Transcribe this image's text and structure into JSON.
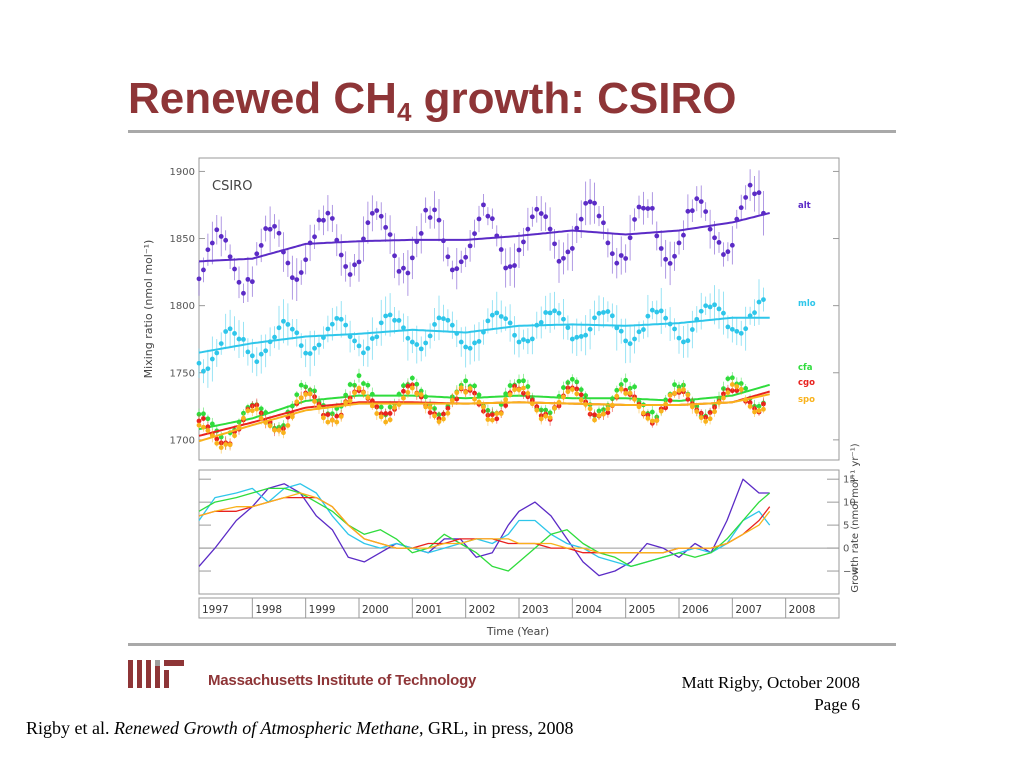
{
  "slide": {
    "title_main": "Renewed CH",
    "title_sub": "4",
    "title_rest": " growth: CSIRO",
    "institution": "Massachusetts Institute of Technology",
    "author": "Matt Rigby, October 2008",
    "page": "Page 6",
    "citation_pre": "Rigby et al. ",
    "citation_title": "Renewed Growth of Atmospheric Methane",
    "citation_post": ", GRL, in press, 2008"
  },
  "colors": {
    "title": "#8e3537",
    "alt": "#5b2bc6",
    "mlo": "#2ec6ea",
    "cfa": "#2fdc3c",
    "cgo": "#e8221f",
    "spo": "#f9b21c"
  },
  "chart_data": [
    {
      "type": "scatter",
      "annotation": "CSIRO",
      "ylabel": "Mixing ratio (nmol mol⁻¹)",
      "ylim": [
        1685,
        1910
      ],
      "xlim": [
        1997,
        2009.0
      ],
      "yticks": [
        1700,
        1750,
        1800,
        1850,
        1900
      ],
      "series": [
        {
          "name": "alt",
          "color": "#5b2bc6",
          "trend": [
            [
              1997.0,
              1833
            ],
            [
              1998.0,
              1835
            ],
            [
              1999.0,
              1846
            ],
            [
              2000.0,
              1848
            ],
            [
              2001.0,
              1849
            ],
            [
              2002.0,
              1849
            ],
            [
              2003.0,
              1852
            ],
            [
              2004.0,
              1856
            ],
            [
              2005.0,
              1853
            ],
            [
              2006.0,
              1856
            ],
            [
              2007.0,
              1862
            ],
            [
              2007.7,
              1869
            ]
          ],
          "mean": [
            1997.0,
            1838
          ],
          "amp": 22
        },
        {
          "name": "mlo",
          "color": "#2ec6ea",
          "trend": [
            [
              1997.0,
              1765
            ],
            [
              1998.0,
              1772
            ],
            [
              1999.0,
              1777
            ],
            [
              2000.0,
              1779
            ],
            [
              2001.0,
              1782
            ],
            [
              2002.0,
              1780
            ],
            [
              2003.0,
              1785
            ],
            [
              2004.0,
              1786
            ],
            [
              2005.0,
              1785
            ],
            [
              2006.0,
              1787
            ],
            [
              2007.0,
              1791
            ],
            [
              2007.7,
              1791
            ]
          ],
          "mean": [
            1997.0,
            1770
          ],
          "amp": 12
        },
        {
          "name": "cfa",
          "color": "#2fdc3c",
          "trend": [
            [
              1997.0,
              1708
            ],
            [
              1998.0,
              1716
            ],
            [
              1999.0,
              1729
            ],
            [
              2000.0,
              1733
            ],
            [
              2001.0,
              1733
            ],
            [
              2002.0,
              1731
            ],
            [
              2003.0,
              1733
            ],
            [
              2004.0,
              1731
            ],
            [
              2005.0,
              1731
            ],
            [
              2006.0,
              1729
            ],
            [
              2007.0,
              1733
            ],
            [
              2007.7,
              1741
            ]
          ],
          "mean": [
            1997.0,
            1712
          ],
          "amp": 12
        },
        {
          "name": "cgo",
          "color": "#e8221f",
          "trend": [
            [
              1997.0,
              1703
            ],
            [
              1998.0,
              1713
            ],
            [
              1999.0,
              1724
            ],
            [
              2000.0,
              1728
            ],
            [
              2001.0,
              1728
            ],
            [
              2002.0,
              1727
            ],
            [
              2003.0,
              1728
            ],
            [
              2004.0,
              1727
            ],
            [
              2005.0,
              1726
            ],
            [
              2006.0,
              1726
            ],
            [
              2007.0,
              1728
            ],
            [
              2007.7,
              1736
            ]
          ],
          "mean": [
            1997.0,
            1707
          ],
          "amp": 11
        },
        {
          "name": "spo",
          "color": "#f9b21c",
          "trend": [
            [
              1997.0,
              1699
            ],
            [
              1998.0,
              1711
            ],
            [
              1999.0,
              1722
            ],
            [
              2000.0,
              1727
            ],
            [
              2001.0,
              1727
            ],
            [
              2002.0,
              1727
            ],
            [
              2003.0,
              1728
            ],
            [
              2004.0,
              1727
            ],
            [
              2005.0,
              1726
            ],
            [
              2006.0,
              1726
            ],
            [
              2007.0,
              1728
            ],
            [
              2007.7,
              1734
            ]
          ],
          "mean": [
            1997.0,
            1703
          ],
          "amp": 11
        }
      ]
    },
    {
      "type": "line",
      "xlabel": "Time (Year)",
      "ylabel": "Growth rate (nmol mol⁻¹ yr⁻¹)",
      "ylim": [
        -10,
        17
      ],
      "xlim": [
        1997,
        2009.0
      ],
      "yticks": [
        -5,
        0,
        5,
        10,
        15
      ],
      "ytick_labels": [
        "−5",
        "0",
        "5",
        "10",
        "15"
      ],
      "xticks": [
        1997,
        1998,
        1999,
        2000,
        2001,
        2002,
        2003,
        2004,
        2005,
        2006,
        2007,
        2008
      ],
      "xtick_labels": [
        "1997",
        "1998",
        "1999",
        "2000",
        "2001",
        "2002",
        "2003",
        "2004",
        "2005",
        "2006",
        "2007",
        "2008"
      ],
      "series": [
        {
          "name": "alt",
          "color": "#5b2bc6",
          "x": [
            1997.0,
            1997.3,
            1997.7,
            1998.0,
            1998.3,
            1998.6,
            1998.9,
            1999.2,
            1999.5,
            1999.8,
            2000.1,
            2000.4,
            2000.7,
            2001.0,
            2001.3,
            2001.6,
            2001.9,
            2002.2,
            2002.5,
            2002.8,
            2003.0,
            2003.3,
            2003.6,
            2003.9,
            2004.2,
            2004.5,
            2004.8,
            2005.1,
            2005.4,
            2005.7,
            2006.0,
            2006.3,
            2006.6,
            2006.9,
            2007.2,
            2007.5,
            2007.7
          ],
          "y": [
            -4,
            0,
            6,
            9,
            13,
            14,
            12,
            7,
            4,
            -2,
            -3,
            -1,
            1,
            0,
            -1,
            2,
            2,
            -2,
            -1,
            5,
            8,
            10,
            7,
            2,
            -3,
            -6,
            -5,
            -3,
            1,
            0,
            -2,
            1,
            -1,
            6,
            15,
            12,
            12
          ]
        },
        {
          "name": "mlo",
          "color": "#2ec6ea",
          "x": [
            1997.0,
            1997.3,
            1997.7,
            1998.0,
            1998.3,
            1998.6,
            1998.9,
            1999.2,
            1999.5,
            1999.8,
            2000.1,
            2000.4,
            2000.7,
            2001.0,
            2001.3,
            2001.6,
            2001.9,
            2002.2,
            2002.5,
            2002.8,
            2003.0,
            2003.3,
            2003.6,
            2003.9,
            2004.2,
            2004.5,
            2004.8,
            2005.1,
            2005.4,
            2005.7,
            2006.0,
            2006.3,
            2006.6,
            2006.9,
            2007.2,
            2007.5,
            2007.7
          ],
          "y": [
            6,
            11,
            12,
            13,
            10,
            13,
            14,
            12,
            7,
            3,
            1,
            0,
            1,
            0,
            -1,
            0,
            1,
            2,
            1,
            3,
            6,
            6,
            3,
            1,
            0,
            -2,
            -3,
            -4,
            -3,
            -2,
            -1,
            0,
            -1,
            1,
            6,
            8,
            5
          ]
        },
        {
          "name": "cfa",
          "color": "#2fdc3c",
          "x": [
            1997.0,
            1997.3,
            1997.7,
            1998.0,
            1998.3,
            1998.6,
            1998.9,
            1999.2,
            1999.5,
            1999.8,
            2000.1,
            2000.4,
            2000.7,
            2001.0,
            2001.3,
            2001.6,
            2001.9,
            2002.2,
            2002.5,
            2002.8,
            2003.0,
            2003.3,
            2003.6,
            2003.9,
            2004.2,
            2004.5,
            2004.8,
            2005.1,
            2005.4,
            2005.7,
            2006.0,
            2006.3,
            2006.6,
            2006.9,
            2007.2,
            2007.5,
            2007.7
          ],
          "y": [
            8,
            10,
            11,
            12,
            13,
            13,
            12,
            10,
            8,
            5,
            3,
            4,
            2,
            -1,
            0,
            3,
            1,
            -1,
            -4,
            -5,
            -3,
            0,
            3,
            4,
            1,
            -1,
            -2,
            -4,
            -3,
            -2,
            -1,
            -2,
            -1,
            2,
            6,
            10,
            12
          ]
        },
        {
          "name": "cgo",
          "color": "#e8221f",
          "x": [
            1997.0,
            1997.3,
            1997.7,
            1998.0,
            1998.3,
            1998.6,
            1998.9,
            1999.2,
            1999.5,
            1999.8,
            2000.1,
            2000.4,
            2000.7,
            2001.0,
            2001.3,
            2001.6,
            2001.9,
            2002.2,
            2002.5,
            2002.8,
            2003.0,
            2003.3,
            2003.6,
            2003.9,
            2004.2,
            2004.5,
            2004.8,
            2005.1,
            2005.4,
            2005.7,
            2006.0,
            2006.3,
            2006.6,
            2006.9,
            2007.2,
            2007.5,
            2007.7
          ],
          "y": [
            7,
            8,
            8,
            9,
            10,
            11,
            11,
            11,
            9,
            5,
            2,
            1,
            0,
            0,
            1,
            1,
            2,
            2,
            2,
            1,
            1,
            1,
            0,
            0,
            -1,
            -1,
            -1,
            -1,
            -1,
            -1,
            0,
            0,
            0,
            1,
            3,
            6,
            9
          ]
        },
        {
          "name": "spo",
          "color": "#f9b21c",
          "x": [
            1997.0,
            1997.3,
            1997.7,
            1998.0,
            1998.3,
            1998.6,
            1998.9,
            1999.2,
            1999.5,
            1999.8,
            2000.1,
            2000.4,
            2000.7,
            2001.0,
            2001.3,
            2001.6,
            2001.9,
            2002.2,
            2002.5,
            2002.8,
            2003.0,
            2003.3,
            2003.6,
            2003.9,
            2004.2,
            2004.5,
            2004.8,
            2005.1,
            2005.4,
            2005.7,
            2006.0,
            2006.3,
            2006.6,
            2006.9,
            2007.2,
            2007.5,
            2007.7
          ],
          "y": [
            7,
            8,
            9,
            9,
            10,
            11,
            12,
            11,
            9,
            5,
            2,
            1,
            0,
            0,
            0,
            1,
            1,
            2,
            2,
            2,
            1,
            1,
            1,
            0,
            0,
            -1,
            -1,
            -1,
            -1,
            -1,
            0,
            0,
            0,
            1,
            3,
            5,
            8
          ]
        }
      ]
    }
  ]
}
